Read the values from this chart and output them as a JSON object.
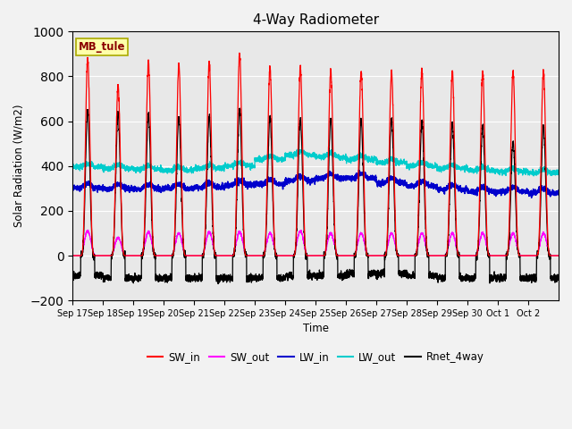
{
  "title": "4-Way Radiometer",
  "xlabel": "Time",
  "ylabel": "Solar Radiation (W/m2)",
  "ylim": [
    -200,
    1000
  ],
  "axes_bg": "#e8e8e8",
  "fig_bg": "#f2f2f2",
  "station_label": "MB_tule",
  "x_tick_labels": [
    "Sep 17",
    "Sep 18",
    "Sep 19",
    "Sep 20",
    "Sep 21",
    "Sep 22",
    "Sep 23",
    "Sep 24",
    "Sep 25",
    "Sep 26",
    "Sep 27",
    "Sep 28",
    "Sep 29",
    "Sep 30",
    "Oct 1",
    "Oct 2"
  ],
  "legend_entries": [
    "SW_in",
    "SW_out",
    "LW_in",
    "LW_out",
    "Rnet_4way"
  ],
  "legend_colors": [
    "#ff0000",
    "#ff00ff",
    "#0000cc",
    "#00cccc",
    "#000000"
  ],
  "n_days": 16,
  "pts_per_day": 288,
  "sw_in_peak": [
    880,
    760,
    865,
    850,
    860,
    900,
    840,
    840,
    825,
    820,
    820,
    830,
    820,
    820,
    820,
    820
  ],
  "sw_out_peak": [
    110,
    80,
    105,
    100,
    105,
    105,
    100,
    110,
    100,
    100,
    100,
    100,
    100,
    100,
    100,
    100
  ],
  "lw_out_base": [
    395,
    390,
    385,
    380,
    390,
    400,
    430,
    450,
    440,
    430,
    415,
    400,
    390,
    380,
    375,
    370
  ],
  "lw_in_base": [
    300,
    298,
    298,
    300,
    305,
    315,
    320,
    335,
    345,
    345,
    325,
    310,
    295,
    285,
    285,
    280
  ],
  "rnet_peak": [
    645,
    630,
    630,
    620,
    620,
    650,
    620,
    610,
    610,
    600,
    610,
    600,
    590,
    580,
    510,
    575
  ],
  "rnet_night": [
    -90,
    -100,
    -100,
    -100,
    -100,
    -100,
    -100,
    -90,
    -90,
    -80,
    -80,
    -90,
    -100,
    -100,
    -100,
    -100
  ]
}
